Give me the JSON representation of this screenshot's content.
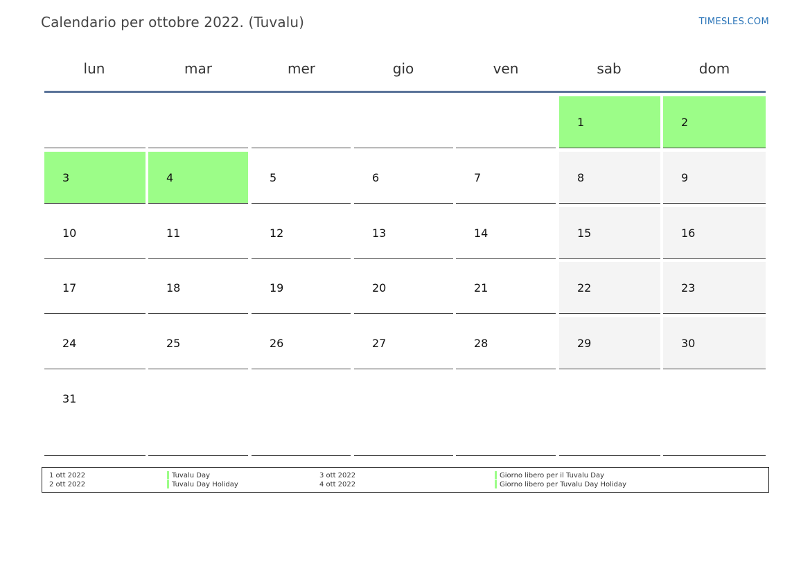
{
  "title": "Calendario per ottobre 2022. (Tuvalu)",
  "brand": "TIMESLES.COM",
  "colors": {
    "holiday": "#9cfd88",
    "weekend": "#f4f4f4",
    "header_line": "#5a7399",
    "brand": "#2a74b8"
  },
  "weekdays": [
    "lun",
    "mar",
    "mer",
    "gio",
    "ven",
    "sab",
    "dom"
  ],
  "weeks": [
    [
      "",
      "",
      "",
      "",
      "",
      "1",
      "2"
    ],
    [
      "3",
      "4",
      "5",
      "6",
      "7",
      "8",
      "9"
    ],
    [
      "10",
      "11",
      "12",
      "13",
      "14",
      "15",
      "16"
    ],
    [
      "17",
      "18",
      "19",
      "20",
      "21",
      "22",
      "23"
    ],
    [
      "24",
      "25",
      "26",
      "27",
      "28",
      "29",
      "30"
    ],
    [
      "31",
      "",
      "",
      "",
      "",
      "",
      ""
    ]
  ],
  "holidays": [
    "1",
    "2",
    "3",
    "4"
  ],
  "legend": [
    {
      "date": "1 ott 2022",
      "name": "Tuvalu Day"
    },
    {
      "date": "2 ott 2022",
      "name": "Tuvalu Day Holiday"
    },
    {
      "date": "3 ott 2022",
      "name": "Giorno libero per il Tuvalu Day"
    },
    {
      "date": "4 ott 2022",
      "name": "Giorno libero per Tuvalu Day Holiday"
    }
  ]
}
